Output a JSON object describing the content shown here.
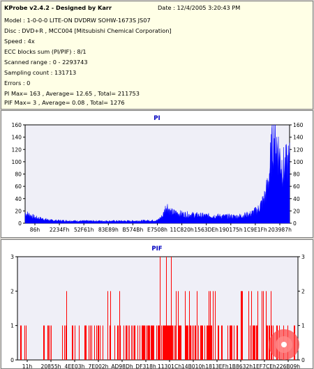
{
  "info": {
    "title": "KProbe v2.4.2 - Designed by Karr",
    "date": "Date : 12/4/2005 3:20:43 PM",
    "lines": [
      "Model : 1-0-0-0 LITE-ON DVDRW SOHW-1673S JS07",
      "Disc : DVD+R , MCC004 [Mitsubishi Chemical Corporation]",
      "Speed : 4x",
      "ECC blocks sum (PI/PIF) : 8/1",
      "Scanned range : 0 - 2293743",
      "Sampling count : 131713",
      "Errors : 0",
      "PI Max= 163 , Average= 12.65 , Total= 211753",
      "PIF Max= 3 , Average= 0.08 , Total= 1276"
    ]
  },
  "colors": {
    "pi": "#0000ff",
    "pif": "#ff0000",
    "plot_bg": "#efeff7",
    "title": "#0000c0"
  },
  "chart_data": [
    {
      "type": "area",
      "title": "PI",
      "ylim": [
        0,
        160
      ],
      "y_ticks": [
        0,
        20,
        40,
        60,
        80,
        100,
        120,
        140,
        160
      ],
      "x_tick_labels": [
        "86h",
        "2234Fh",
        "52F61h",
        "83E89h",
        "B574Bh",
        "E7508h",
        "11C820h",
        "1563DEh",
        "190175h",
        "1C9E1Fh",
        "203987h"
      ],
      "grid": false,
      "series": [
        {
          "x": [
            0,
            0.04,
            0.1,
            0.2,
            0.3,
            0.4,
            0.5,
            0.52,
            0.535,
            0.55,
            0.6,
            0.7,
            0.8,
            0.85,
            0.88,
            0.9,
            0.91,
            0.92,
            0.93,
            0.935,
            0.94,
            0.95,
            0.96,
            0.97,
            0.98,
            1.0
          ],
          "values": [
            18,
            10,
            5,
            4,
            4,
            4,
            5,
            13,
            32,
            20,
            16,
            13,
            12,
            16,
            24,
            40,
            52,
            75,
            120,
            150,
            160,
            145,
            125,
            105,
            100,
            110
          ]
        }
      ]
    },
    {
      "type": "bar",
      "title": "PIF",
      "ylim": [
        0,
        3
      ],
      "y_ticks": [
        0,
        1,
        2,
        3
      ],
      "x_tick_labels": [
        "11h",
        "20855h",
        "4EE03h",
        "7E002h",
        "AD98Dh",
        "DF318h",
        "11301Ch",
        "14B010h",
        "1813EFh",
        "1B8632h",
        "1EF7CEh",
        "226B09h"
      ],
      "grid": false,
      "series": [
        {
          "segments": [
            {
              "from": 0.0,
              "to": 0.03,
              "density": 0.3,
              "max": 1
            },
            {
              "from": 0.03,
              "to": 0.1,
              "density": 0.05,
              "max": 1
            },
            {
              "from": 0.1,
              "to": 0.28,
              "density": 0.2,
              "max": 2
            },
            {
              "from": 0.28,
              "to": 0.38,
              "density": 0.3,
              "max": 2
            },
            {
              "from": 0.38,
              "to": 0.5,
              "density": 0.55,
              "max": 1
            },
            {
              "from": 0.5,
              "to": 0.55,
              "density": 0.85,
              "max": 3
            },
            {
              "from": 0.55,
              "to": 0.62,
              "density": 0.75,
              "max": 2
            },
            {
              "from": 0.62,
              "to": 0.75,
              "density": 0.55,
              "max": 2
            },
            {
              "from": 0.75,
              "to": 0.88,
              "density": 0.45,
              "max": 2
            },
            {
              "from": 0.88,
              "to": 1.0,
              "density": 0.35,
              "max": 2
            }
          ]
        }
      ]
    }
  ]
}
